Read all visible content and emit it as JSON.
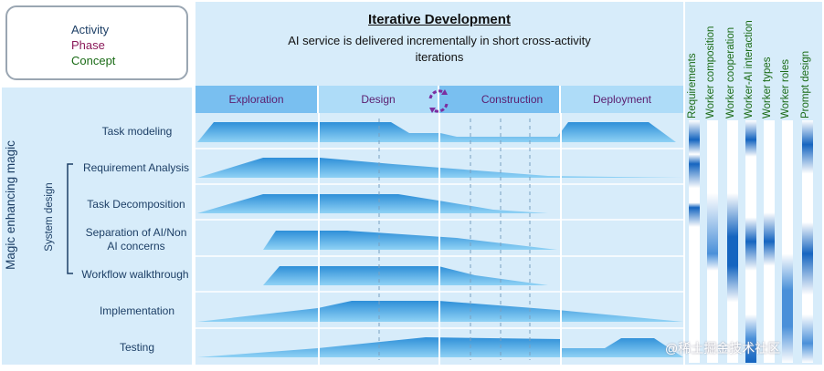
{
  "legend": {
    "activity": "Activity",
    "phase": "Phase",
    "concept": "Concept"
  },
  "title": "Iterative Development",
  "subtitle": "AI service is delivered incrementally in short cross-activity iterations",
  "phases": [
    "Exploration",
    "Design",
    "Construction",
    "Deployment"
  ],
  "group_label": "Magic enhancing magic",
  "subgroup_label": "System design",
  "tasks": {
    "t0": "Task modeling",
    "t1": "Requirement Analysis",
    "t2": "Task Decomposition",
    "t3_line1": "Separation of AI/Non",
    "t3_line2": "AI concerns",
    "t4": "Workflow walkthrough",
    "t5": "Implementation",
    "t6": "Testing"
  },
  "concepts": [
    "Requirements",
    "Worker composition",
    "Worker cooperation",
    "Worker-AI interaction",
    "Worker types",
    "Worker roles",
    "Prompt design"
  ],
  "watermark": "@稀土掘金技术社区",
  "colors": {
    "activity": "#1d3f66",
    "phase": "#8b1a5a",
    "concept": "#1a6b16",
    "band_light": "#d7ecfa",
    "area_light": "#8fd2f5",
    "area_dark": "#2e8fd8",
    "strip_dark": "#1565c0",
    "iteration_arrows": "#7b2ea0"
  },
  "icons": {
    "iteration": "cycle-arrows-icon"
  }
}
